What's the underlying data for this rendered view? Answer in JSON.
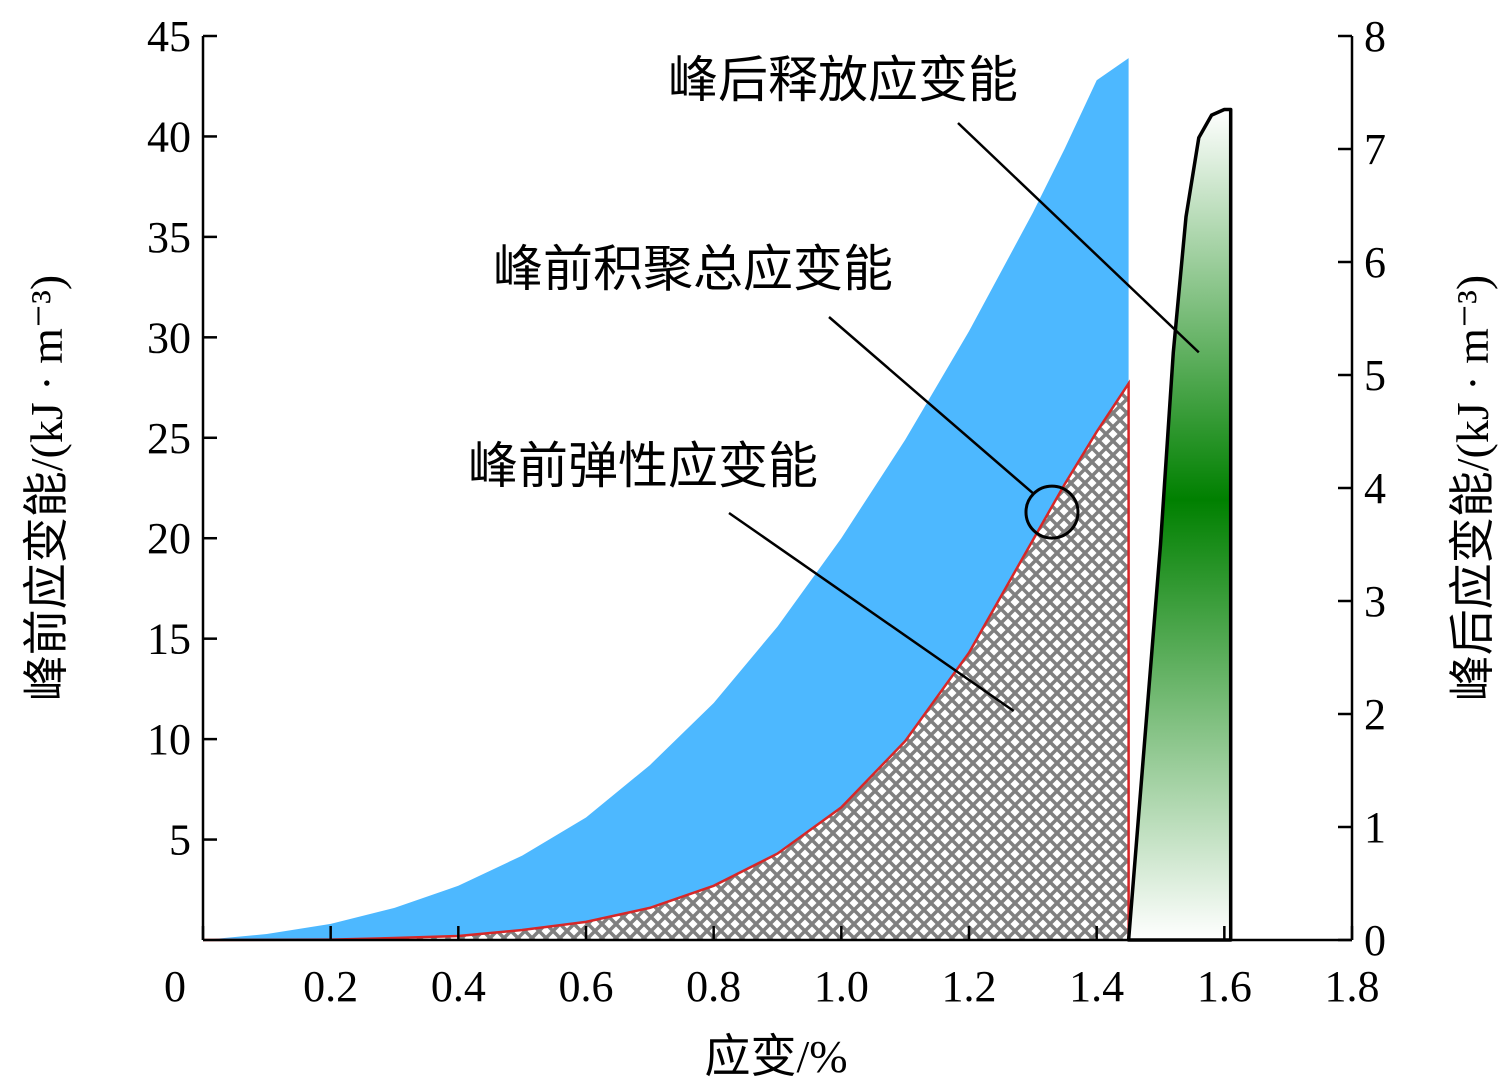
{
  "chart_data": {
    "type": "area",
    "title": "",
    "xlabel": "应变/%",
    "ylabel_left": "峰前应变能/(kJ · m⁻³)",
    "ylabel_right": "峰后应变能/(kJ · m⁻³)",
    "xlim": [
      0,
      1.8
    ],
    "ylim_left": [
      0,
      45
    ],
    "ylim_right": [
      0,
      8
    ],
    "x_ticks": [
      0,
      0.2,
      0.4,
      0.6,
      0.8,
      1.0,
      1.2,
      1.4,
      1.6,
      1.8
    ],
    "x_tick_labels": [
      "0",
      "0.2",
      "0.4",
      "0.6",
      "0.8",
      "1.0",
      "1.2",
      "1.4",
      "1.6",
      "1.8"
    ],
    "y_left_ticks": [
      5,
      10,
      15,
      20,
      25,
      30,
      35,
      40,
      45
    ],
    "y_left_tick_labels": [
      "5",
      "10",
      "15",
      "20",
      "25",
      "30",
      "35",
      "40",
      "45"
    ],
    "y_right_ticks": [
      0,
      1,
      2,
      3,
      4,
      5,
      6,
      7,
      8
    ],
    "y_right_tick_labels": [
      "0",
      "1",
      "2",
      "3",
      "4",
      "5",
      "6",
      "7",
      "8"
    ],
    "grid": false,
    "legend": "none",
    "series": [
      {
        "name": "峰前积聚总应变能",
        "axis": "left",
        "color": "#4db8ff",
        "x": [
          0,
          0.1,
          0.2,
          0.3,
          0.4,
          0.5,
          0.6,
          0.7,
          0.8,
          0.9,
          1.0,
          1.1,
          1.2,
          1.3,
          1.35,
          1.4,
          1.45
        ],
        "y": [
          0,
          0.3,
          0.8,
          1.6,
          2.7,
          4.2,
          6.1,
          8.7,
          11.8,
          15.6,
          20.0,
          24.9,
          30.3,
          36.2,
          39.4,
          42.8,
          43.9
        ]
      },
      {
        "name": "峰前弹性应变能",
        "axis": "left",
        "color": "#d62728",
        "fill": "crosshatch-gray",
        "x": [
          0,
          0.2,
          0.3,
          0.4,
          0.5,
          0.6,
          0.7,
          0.8,
          0.9,
          1.0,
          1.1,
          1.2,
          1.3,
          1.35,
          1.4,
          1.45
        ],
        "y": [
          0,
          0.02,
          0.1,
          0.2,
          0.5,
          0.9,
          1.6,
          2.7,
          4.3,
          6.6,
          9.9,
          14.3,
          19.9,
          22.7,
          25.3,
          27.7
        ]
      },
      {
        "name": "峰后释放应变能",
        "axis": "right",
        "color": "#008000",
        "fill": "gradient-green",
        "x": [
          1.45,
          1.5,
          1.52,
          1.54,
          1.56,
          1.58,
          1.6,
          1.61,
          1.61
        ],
        "y": [
          0,
          3.5,
          5.2,
          6.4,
          7.1,
          7.3,
          7.35,
          7.35,
          0
        ]
      }
    ],
    "annotations": [
      {
        "text": "峰后释放应变能",
        "points_to": {
          "x": 1.56,
          "y_right": 5.2
        }
      },
      {
        "text": "峰前积聚总应变能",
        "points_to": {
          "x": 1.33,
          "y_left": 21.3
        }
      },
      {
        "text": "峰前弹性应变能",
        "points_to": {
          "x": 1.27,
          "y_left": 11.4
        }
      }
    ]
  }
}
